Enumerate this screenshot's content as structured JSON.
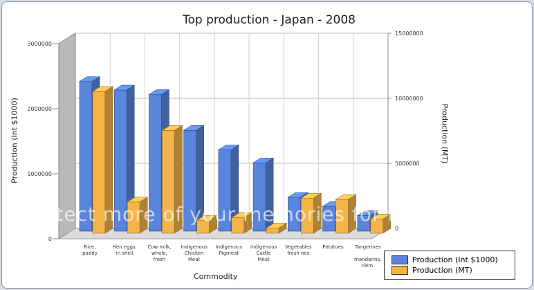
{
  "chart_data": {
    "type": "bar",
    "title": "Top production - Japan - 2008",
    "xlabel": "Commodity",
    "ylabel": "Production (Int $1000)",
    "y2label": "Production (MT)",
    "categories": [
      [
        "Rice,",
        "paddy"
      ],
      [
        "Hen eggs,",
        "in shell"
      ],
      [
        "Cow milk,",
        "whole,",
        "fresh"
      ],
      [
        "Indigenous",
        "Chicken",
        "Meat"
      ],
      [
        "Indigenous",
        "Pigmeat"
      ],
      [
        "Indigenous",
        "Cattle",
        "Meat"
      ],
      [
        "Vegetables",
        "fresh nes"
      ],
      [
        "Potatoes"
      ],
      [
        "Tangerines",
        "",
        "mandarins,",
        "clem."
      ]
    ],
    "ylim": [
      0,
      3000000
    ],
    "y2lim": [
      0,
      15000000
    ],
    "yticks": [
      "0",
      "1000000",
      "2000000",
      "3000000"
    ],
    "y2ticks": [
      "0",
      "5000000",
      "10000000",
      "15000000"
    ],
    "grid": true,
    "legend_position": "bottom-right",
    "series": [
      {
        "name": "Production (Int $1000)",
        "axis": "left",
        "color": "#5a85dc",
        "values": [
          2300000,
          2170000,
          2100000,
          1550000,
          1250000,
          1050000,
          520000,
          380000,
          240000
        ]
      },
      {
        "name": "Production (MT)",
        "axis": "right",
        "color": "#f5b449",
        "values": [
          10900000,
          2400000,
          7900000,
          1000000,
          1200000,
          400000,
          2700000,
          2600000,
          1100000
        ]
      }
    ]
  },
  "watermark": "Protect more of your memories for less!"
}
